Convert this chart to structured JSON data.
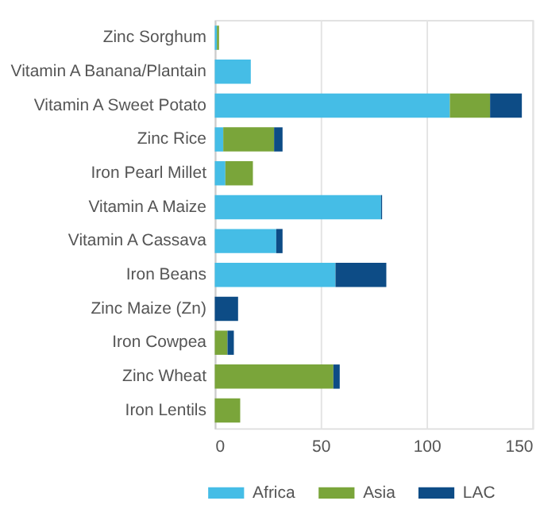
{
  "chart_data": {
    "type": "bar",
    "orientation": "horizontal",
    "stacked": true,
    "categories": [
      "Zinc Sorghum",
      "Vitamin A Banana/Plantain",
      "Vitamin A Sweet Potato",
      "Zinc Rice",
      "Iron Pearl Millet",
      "Vitamin A Maize",
      "Vitamin A Cassava",
      "Iron Beans",
      "Zinc Maize (Zn)",
      "Iron Cowpea",
      "Zinc Wheat",
      "Iron Lentils"
    ],
    "series": [
      {
        "name": "Africa",
        "color": "#45bde6",
        "values": [
          1,
          17,
          111,
          4,
          5,
          78.5,
          29,
          57,
          null,
          null,
          null,
          null
        ]
      },
      {
        "name": "Asia",
        "color": "#7aa53a",
        "values": [
          1,
          null,
          19,
          24,
          13,
          null,
          null,
          null,
          null,
          6,
          56,
          12
        ]
      },
      {
        "name": "LAC",
        "color": "#0d4c86",
        "values": [
          null,
          null,
          15,
          4,
          null,
          0.5,
          3,
          24,
          11,
          3,
          3,
          null
        ]
      }
    ],
    "xlim": [
      0,
      150
    ],
    "xticks": [
      0,
      50,
      100,
      150
    ],
    "grid": "x",
    "legend": "bottom"
  }
}
